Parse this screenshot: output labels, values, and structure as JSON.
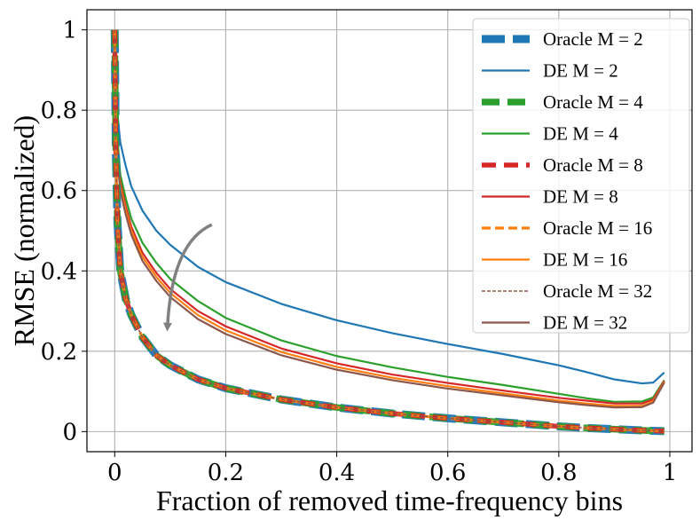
{
  "chart_data": {
    "type": "line",
    "title": "",
    "xlabel": "Fraction of removed time-frequency bins",
    "ylabel": "RMSE (normalized)",
    "xlim": [
      -0.05,
      1.04
    ],
    "ylim": [
      -0.05,
      1.05
    ],
    "xticks": [
      0,
      0.2,
      0.4,
      0.6,
      0.8,
      1
    ],
    "xtick_labels": [
      "0",
      "0.2",
      "0.4",
      "0.6",
      "0.8",
      "1"
    ],
    "yticks": [
      0,
      0.2,
      0.4,
      0.6,
      0.8,
      1
    ],
    "ytick_labels": [
      "0",
      "0.2",
      "0.4",
      "0.6",
      "0.8",
      "1"
    ],
    "grid": true,
    "legend_position": "top-right",
    "annotation": {
      "type": "arrow",
      "color": "#808080",
      "from": [
        0.175,
        0.515
      ],
      "to": [
        0.095,
        0.26
      ]
    },
    "x": [
      0.0,
      0.002,
      0.005,
      0.01,
      0.02,
      0.03,
      0.05,
      0.075,
      0.1,
      0.15,
      0.2,
      0.3,
      0.4,
      0.5,
      0.6,
      0.7,
      0.8,
      0.85,
      0.9,
      0.95,
      0.97,
      0.99
    ],
    "series": [
      {
        "name": "Oracle M = 2",
        "color": "#1f77b4",
        "style": "oracle",
        "values": [
          1.0,
          0.7,
          0.52,
          0.4,
          0.33,
          0.29,
          0.235,
          0.19,
          0.165,
          0.13,
          0.108,
          0.08,
          0.06,
          0.045,
          0.033,
          0.023,
          0.013,
          0.009,
          0.006,
          0.003,
          0.002,
          0.001
        ]
      },
      {
        "name": "DE M = 2",
        "color": "#1f77b4",
        "style": "de",
        "values": [
          1.0,
          0.86,
          0.79,
          0.72,
          0.66,
          0.61,
          0.55,
          0.5,
          0.465,
          0.41,
          0.372,
          0.318,
          0.277,
          0.245,
          0.218,
          0.193,
          0.165,
          0.148,
          0.13,
          0.12,
          0.122,
          0.147
        ]
      },
      {
        "name": "Oracle M = 4",
        "color": "#2ca02c",
        "style": "oracle",
        "values": [
          1.0,
          0.7,
          0.52,
          0.4,
          0.33,
          0.29,
          0.235,
          0.19,
          0.165,
          0.13,
          0.108,
          0.08,
          0.06,
          0.045,
          0.033,
          0.023,
          0.013,
          0.009,
          0.006,
          0.003,
          0.002,
          0.001
        ]
      },
      {
        "name": "DE M = 4",
        "color": "#2ca02c",
        "style": "de",
        "values": [
          1.0,
          0.82,
          0.73,
          0.64,
          0.58,
          0.53,
          0.47,
          0.42,
          0.38,
          0.325,
          0.283,
          0.227,
          0.188,
          0.16,
          0.136,
          0.116,
          0.094,
          0.083,
          0.074,
          0.075,
          0.085,
          0.128
        ]
      },
      {
        "name": "Oracle M = 8",
        "color": "#d62728",
        "style": "oracle",
        "values": [
          1.0,
          0.7,
          0.52,
          0.4,
          0.33,
          0.29,
          0.235,
          0.19,
          0.165,
          0.13,
          0.108,
          0.08,
          0.06,
          0.045,
          0.033,
          0.023,
          0.013,
          0.009,
          0.006,
          0.003,
          0.002,
          0.001
        ]
      },
      {
        "name": "DE M = 8",
        "color": "#d62728",
        "style": "de",
        "values": [
          1.0,
          0.8,
          0.7,
          0.62,
          0.56,
          0.51,
          0.445,
          0.395,
          0.355,
          0.3,
          0.262,
          0.207,
          0.17,
          0.142,
          0.121,
          0.102,
          0.084,
          0.077,
          0.07,
          0.07,
          0.08,
          0.126
        ]
      },
      {
        "name": "Oracle M = 16",
        "color": "#ff7f0e",
        "style": "oracle",
        "values": [
          1.0,
          0.7,
          0.52,
          0.4,
          0.33,
          0.29,
          0.235,
          0.19,
          0.165,
          0.13,
          0.108,
          0.08,
          0.06,
          0.045,
          0.033,
          0.023,
          0.013,
          0.009,
          0.006,
          0.003,
          0.002,
          0.001
        ]
      },
      {
        "name": "DE M = 16",
        "color": "#ff7f0e",
        "style": "de",
        "values": [
          1.0,
          0.79,
          0.69,
          0.61,
          0.55,
          0.5,
          0.435,
          0.385,
          0.345,
          0.29,
          0.252,
          0.198,
          0.161,
          0.134,
          0.113,
          0.095,
          0.077,
          0.07,
          0.064,
          0.064,
          0.075,
          0.124
        ]
      },
      {
        "name": "Oracle M = 32",
        "color": "#8c564b",
        "style": "oracle-thin",
        "values": [
          1.0,
          0.7,
          0.52,
          0.4,
          0.33,
          0.29,
          0.235,
          0.19,
          0.165,
          0.13,
          0.108,
          0.08,
          0.06,
          0.045,
          0.033,
          0.023,
          0.013,
          0.009,
          0.006,
          0.003,
          0.002,
          0.001
        ]
      },
      {
        "name": "DE M = 32",
        "color": "#8c564b",
        "style": "de",
        "values": [
          1.0,
          0.78,
          0.68,
          0.6,
          0.54,
          0.49,
          0.425,
          0.375,
          0.335,
          0.28,
          0.243,
          0.19,
          0.154,
          0.128,
          0.107,
          0.09,
          0.073,
          0.066,
          0.06,
          0.061,
          0.072,
          0.122
        ]
      }
    ]
  }
}
